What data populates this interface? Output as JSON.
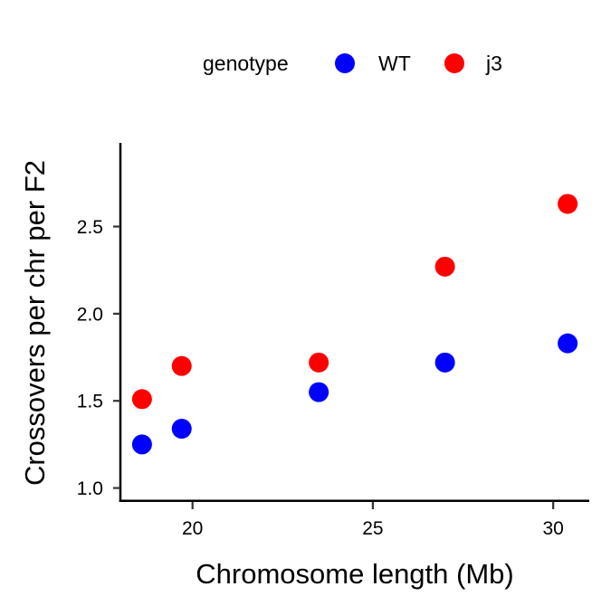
{
  "chart_data": {
    "type": "scatter",
    "title": "",
    "xlabel": "Chromosome length (Mb)",
    "ylabel": "Crossovers per chr per F2",
    "xlim": [
      18.0,
      31.0
    ],
    "ylim": [
      0.92,
      2.98
    ],
    "xticks": [
      20,
      25,
      30
    ],
    "xtick_labels": [
      "20",
      "25",
      "30"
    ],
    "yticks": [
      1.0,
      1.5,
      2.0,
      2.5
    ],
    "ytick_labels": [
      "1.0",
      "1.5",
      "2.0",
      "2.5"
    ],
    "grid": false,
    "legend": {
      "title": "genotype",
      "position": "top"
    },
    "series": [
      {
        "name": "WT",
        "color": "#0000ff",
        "points": [
          {
            "x": 18.6,
            "y": 1.25
          },
          {
            "x": 19.7,
            "y": 1.34
          },
          {
            "x": 23.5,
            "y": 1.55
          },
          {
            "x": 27.0,
            "y": 1.72
          },
          {
            "x": 30.4,
            "y": 1.83
          }
        ]
      },
      {
        "name": "j3",
        "color": "#ff0000",
        "points": [
          {
            "x": 18.6,
            "y": 1.51
          },
          {
            "x": 19.7,
            "y": 1.7
          },
          {
            "x": 23.5,
            "y": 1.72
          },
          {
            "x": 27.0,
            "y": 2.27
          },
          {
            "x": 30.4,
            "y": 2.63
          }
        ]
      }
    ]
  }
}
